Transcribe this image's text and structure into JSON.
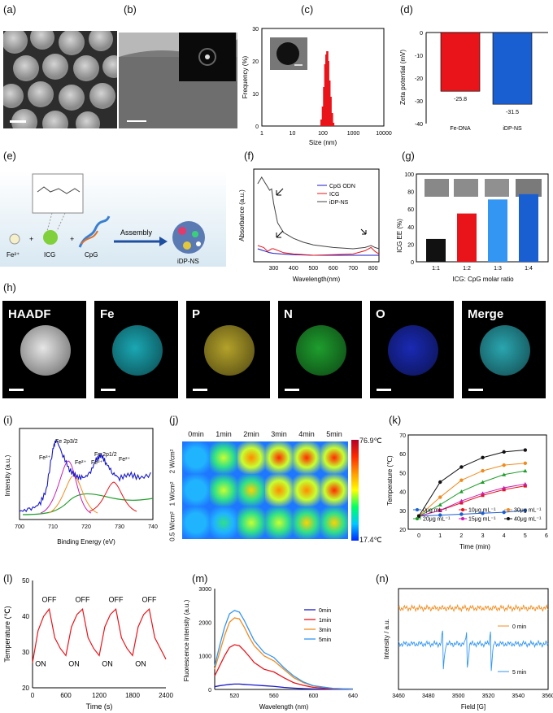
{
  "panel_labels": {
    "a": "(a)",
    "b": "(b)",
    "c": "(c)",
    "d": "(d)",
    "e": "(e)",
    "f": "(f)",
    "g": "(g)",
    "h": "(h)",
    "i": "(i)",
    "j": "(j)",
    "k": "(k)",
    "l": "(l)",
    "m": "(m)",
    "n": "(n)"
  },
  "colors": {
    "red": "#e8141a",
    "blue": "#1a5fd1",
    "lightblue": "#3296f2",
    "orange": "#f08c1e",
    "green": "#1f9d2a",
    "navy": "#1818c8",
    "magenta": "#c81eb4",
    "black": "#111111"
  },
  "panel_e": {
    "labels": {
      "fe": "Fe²⁺",
      "icg": "ICG",
      "cpg": "CpG",
      "arrow": "Assembly",
      "product": "iDP-NS"
    }
  },
  "panel_h": {
    "tiles": [
      {
        "name": "HAADF",
        "color": "#e6e6e6"
      },
      {
        "name": "Fe",
        "color": "#1aa8b4"
      },
      {
        "name": "P",
        "color": "#b4a22a"
      },
      {
        "name": "N",
        "color": "#1e9e2e"
      },
      {
        "name": "O",
        "color": "#1a2ab4"
      },
      {
        "name": "Merge",
        "color": "#2aa6b0"
      }
    ]
  },
  "panel_j": {
    "columns": [
      "0min",
      "1min",
      "2min",
      "3min",
      "4min",
      "5min"
    ],
    "rows": [
      "2 W/cm²",
      "1 W/cm²",
      "0.5 W/cm²"
    ],
    "colorbar_max": "76.9℃",
    "colorbar_min": "17.4℃"
  },
  "chart_data": [
    {
      "id": "c",
      "type": "bar",
      "xlabel": "Size (nm)",
      "ylabel": "Frequency (%)",
      "xscale": "log",
      "xlim": [
        1,
        10000
      ],
      "ylim": [
        0,
        30
      ],
      "xticks": [
        "1",
        "10",
        "100",
        "1000",
        "10000"
      ],
      "yticks": [
        "0",
        "10",
        "20",
        "30"
      ],
      "x": [
        90,
        100,
        110,
        120,
        130,
        140,
        150,
        165,
        180,
        200,
        220
      ],
      "values": [
        2,
        6,
        12,
        19,
        22,
        23,
        20,
        14,
        9,
        4,
        1
      ]
    },
    {
      "id": "d",
      "type": "bar",
      "xlabel": "",
      "ylabel": "Zeta potential (mV)",
      "ylim": [
        -40,
        0
      ],
      "yticks": [
        "0",
        "-10",
        "-20",
        "-30",
        "-40"
      ],
      "categories": [
        "Fe-DNA",
        "iDP-NS"
      ],
      "values": [
        -25.8,
        -31.5
      ],
      "data_labels": [
        "-25.8",
        "-31.5"
      ]
    },
    {
      "id": "f",
      "type": "line",
      "xlabel": "Wavelength(nm)",
      "ylabel": "Absorbance (a.u.)",
      "xlim": [
        200,
        830
      ],
      "xticks": [
        "300",
        "400",
        "500",
        "600",
        "700",
        "800"
      ],
      "series": [
        {
          "name": "CpG ODN",
          "x": [
            220,
            240,
            260,
            280,
            300,
            340,
            400,
            500,
            600,
            700,
            760,
            800,
            830
          ],
          "values": [
            0.2,
            0.18,
            0.16,
            0.14,
            0.13,
            0.12,
            0.11,
            0.1,
            0.1,
            0.1,
            0.1,
            0.1,
            0.1
          ]
        },
        {
          "name": "ICG",
          "x": [
            220,
            250,
            270,
            290,
            300,
            350,
            400,
            500,
            600,
            700,
            760,
            790,
            810,
            830
          ],
          "values": [
            0.25,
            0.22,
            0.16,
            0.2,
            0.2,
            0.14,
            0.12,
            0.1,
            0.11,
            0.12,
            0.17,
            0.22,
            0.16,
            0.12
          ]
        },
        {
          "name": "iDP-NS",
          "x": [
            220,
            240,
            260,
            280,
            290,
            300,
            320,
            350,
            400,
            450,
            500,
            600,
            700,
            760,
            790,
            810,
            830
          ],
          "values": [
            1.2,
            1.3,
            1.2,
            1.1,
            1.12,
            0.9,
            0.6,
            0.45,
            0.36,
            0.3,
            0.26,
            0.22,
            0.2,
            0.22,
            0.25,
            0.22,
            0.2
          ]
        }
      ]
    },
    {
      "id": "g",
      "type": "bar",
      "xlabel": "ICG: CpG molar ratio",
      "ylabel": "ICG EE (%)",
      "ylim": [
        0,
        100
      ],
      "yticks": [
        "0",
        "20",
        "40",
        "60",
        "80",
        "100"
      ],
      "categories": [
        "1:1",
        "1:2",
        "1:3",
        "1:4"
      ],
      "values": [
        26,
        55,
        71,
        77
      ]
    },
    {
      "id": "i",
      "type": "line",
      "xlabel": "Binding Energy (eV)",
      "ylabel": "Intensity (a.u.)",
      "xlim": [
        700,
        740
      ],
      "xticks": [
        "700",
        "710",
        "720",
        "730",
        "740"
      ],
      "annotations": [
        "Fe 2p3/2",
        "Fe 2p1/2",
        "Fe³⁺",
        "Fe²⁺",
        "Fe³⁺",
        "Fe²⁺"
      ],
      "series": [
        {
          "name": "raw",
          "x": [
            700,
            703,
            706,
            708,
            710,
            711,
            713,
            715,
            717,
            719,
            721,
            723,
            724.5,
            726,
            728,
            730,
            733,
            736,
            740
          ],
          "values": [
            0.1,
            0.12,
            0.18,
            0.35,
            0.85,
            0.97,
            0.78,
            0.6,
            0.52,
            0.5,
            0.55,
            0.72,
            0.78,
            0.68,
            0.56,
            0.5,
            0.55,
            0.5,
            0.55
          ]
        }
      ]
    },
    {
      "id": "k",
      "type": "line",
      "xlabel": "Time  (min)",
      "ylabel": "Temperature  (℃)",
      "xlim": [
        -0.5,
        6
      ],
      "ylim": [
        20,
        70
      ],
      "xticks": [
        "0",
        "1",
        "2",
        "3",
        "4",
        "5",
        "6"
      ],
      "yticks": [
        "20",
        "30",
        "40",
        "50",
        "60",
        "70"
      ],
      "x": [
        0,
        1,
        2,
        3,
        4,
        5
      ],
      "series": [
        {
          "name": "0μg mL⁻¹",
          "values": [
            27,
            27.5,
            28,
            28.5,
            29,
            30
          ]
        },
        {
          "name": "10μg mL⁻¹",
          "values": [
            27,
            30,
            34,
            38,
            41,
            43
          ]
        },
        {
          "name": "15μg mL⁻¹",
          "values": [
            27,
            30,
            35,
            39,
            42,
            44
          ]
        },
        {
          "name": "20μg mL⁻¹",
          "values": [
            27,
            33,
            40,
            45,
            49,
            51
          ]
        },
        {
          "name": "30μg mL⁻¹",
          "values": [
            27,
            37,
            46,
            51,
            54,
            55
          ]
        },
        {
          "name": "40μg mL⁻¹",
          "values": [
            27,
            45,
            53,
            58,
            61,
            62
          ]
        }
      ]
    },
    {
      "id": "l",
      "type": "line",
      "xlabel": "Time  (s)",
      "ylabel": "Temperature  (℃)",
      "xlim": [
        0,
        2400
      ],
      "ylim": [
        20,
        50
      ],
      "xticks": [
        "0",
        "600",
        "1200",
        "1800",
        "2400"
      ],
      "yticks": [
        "20",
        "30",
        "40",
        "50"
      ],
      "annotations": [
        "OFF",
        "OFF",
        "OFF",
        "OFF",
        "ON",
        "ON",
        "ON",
        "ON"
      ],
      "series": [
        {
          "name": "cycle",
          "x": [
            0,
            100,
            200,
            300,
            400,
            500,
            600,
            700,
            800,
            900,
            1000,
            1100,
            1200,
            1300,
            1400,
            1500,
            1600,
            1700,
            1800,
            1900,
            2000,
            2100,
            2200,
            2300,
            2400
          ],
          "values": [
            27,
            36,
            40,
            42,
            34,
            31,
            29,
            37,
            40.5,
            42,
            34,
            31,
            29,
            37,
            40.5,
            42,
            34,
            31,
            29,
            37,
            40.5,
            42,
            34,
            31,
            28
          ]
        }
      ]
    },
    {
      "id": "m",
      "type": "line",
      "xlabel": "Wavelength (nm)",
      "ylabel": "Fluorescence intensity  (a.u.)",
      "xlim": [
        500,
        640
      ],
      "ylim": [
        0,
        3000
      ],
      "xticks": [
        "520",
        "560",
        "600",
        "640"
      ],
      "yticks": [
        "0",
        "1000",
        "2000",
        "3000"
      ],
      "x": [
        500,
        505,
        510,
        515,
        520,
        525,
        530,
        535,
        540,
        550,
        560,
        570,
        580,
        590,
        600,
        620,
        640
      ],
      "series": [
        {
          "name": "0min",
          "values": [
            80,
            110,
            130,
            150,
            160,
            160,
            150,
            140,
            130,
            110,
            90,
            60,
            40,
            25,
            15,
            8,
            5
          ]
        },
        {
          "name": "1min",
          "values": [
            400,
            700,
            1000,
            1250,
            1330,
            1300,
            1150,
            980,
            800,
            600,
            520,
            350,
            200,
            120,
            60,
            20,
            10
          ]
        },
        {
          "name": "3min",
          "values": [
            600,
            1100,
            1600,
            2000,
            2130,
            2100,
            1850,
            1550,
            1300,
            1000,
            850,
            600,
            350,
            200,
            100,
            30,
            10
          ]
        },
        {
          "name": "5min",
          "values": [
            700,
            1300,
            1850,
            2250,
            2350,
            2300,
            2050,
            1750,
            1450,
            1100,
            950,
            650,
            400,
            220,
            110,
            30,
            10
          ]
        }
      ]
    },
    {
      "id": "n",
      "type": "line",
      "xlabel": "Field [G]",
      "ylabel": "Intensity / a.u.",
      "xlim": [
        3460,
        3560
      ],
      "xticks": [
        "3460",
        "3480",
        "3500",
        "3520",
        "3540",
        "3560"
      ],
      "series": [
        {
          "name": "0 min",
          "level": 0.8
        },
        {
          "name": "5 min",
          "level": 0.45,
          "spikes": [
            3490,
            3506,
            3522
          ]
        }
      ]
    }
  ]
}
